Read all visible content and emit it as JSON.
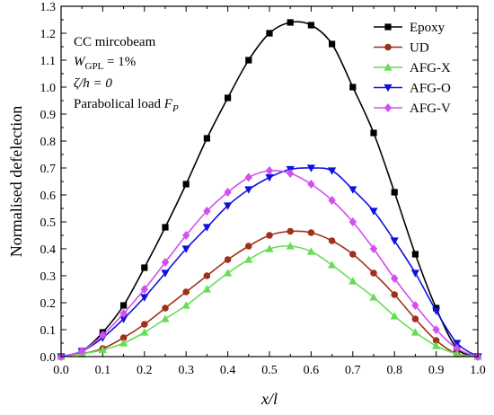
{
  "chart_data": {
    "type": "line",
    "xlabel": "x/l",
    "ylabel": "Normalised defelection",
    "xlim": [
      0.0,
      1.0
    ],
    "ylim": [
      0.0,
      1.3
    ],
    "xticks": [
      "0.0",
      "0.1",
      "0.2",
      "0.3",
      "0.4",
      "0.5",
      "0.6",
      "0.7",
      "0.8",
      "0.9",
      "1.0"
    ],
    "yticks": [
      "0.0",
      "0.1",
      "0.2",
      "0.3",
      "0.4",
      "0.5",
      "0.6",
      "0.7",
      "0.8",
      "0.9",
      "1.0",
      "1.1",
      "1.2",
      "1.3"
    ],
    "legend_position": "top-right",
    "annotations": {
      "line1": "CC mircobeam",
      "line2_main": "W",
      "line2_sub": "GPL",
      "line2_rest": " = 1%",
      "line3": "ζ/h = 0",
      "line4_main": "Parabolical load ",
      "line4_italic": "F",
      "line4_sub": "P"
    },
    "x": [
      0.0,
      0.05,
      0.1,
      0.15,
      0.2,
      0.25,
      0.3,
      0.35,
      0.4,
      0.45,
      0.5,
      0.55,
      0.6,
      0.65,
      0.7,
      0.75,
      0.8,
      0.85,
      0.9,
      0.95,
      1.0
    ],
    "series": [
      {
        "name": "Epoxy",
        "color": "#000000",
        "marker": "square",
        "values": [
          0.0,
          0.02,
          0.09,
          0.19,
          0.33,
          0.48,
          0.64,
          0.81,
          0.96,
          1.1,
          1.2,
          1.24,
          1.23,
          1.16,
          1.0,
          0.83,
          0.61,
          0.38,
          0.18,
          0.03,
          0.0
        ]
      },
      {
        "name": "UD",
        "color": "#a0301a",
        "marker": "circle",
        "values": [
          0.0,
          0.01,
          0.03,
          0.07,
          0.12,
          0.18,
          0.24,
          0.3,
          0.36,
          0.41,
          0.45,
          0.465,
          0.46,
          0.43,
          0.38,
          0.31,
          0.23,
          0.14,
          0.06,
          0.01,
          0.0
        ]
      },
      {
        "name": "AFG-X",
        "color": "#66dd55",
        "marker": "triangle-up",
        "values": [
          0.0,
          0.01,
          0.025,
          0.05,
          0.09,
          0.14,
          0.19,
          0.25,
          0.31,
          0.36,
          0.4,
          0.41,
          0.39,
          0.34,
          0.28,
          0.22,
          0.15,
          0.09,
          0.04,
          0.01,
          0.0
        ]
      },
      {
        "name": "AFG-O",
        "color": "#1010e0",
        "marker": "triangle-down",
        "values": [
          0.0,
          0.02,
          0.07,
          0.14,
          0.22,
          0.31,
          0.4,
          0.48,
          0.56,
          0.62,
          0.665,
          0.695,
          0.7,
          0.69,
          0.62,
          0.54,
          0.43,
          0.31,
          0.17,
          0.05,
          0.0
        ]
      },
      {
        "name": "AFG-V",
        "color": "#d050f0",
        "marker": "diamond",
        "values": [
          0.0,
          0.02,
          0.08,
          0.16,
          0.25,
          0.35,
          0.45,
          0.54,
          0.61,
          0.665,
          0.69,
          0.68,
          0.64,
          0.58,
          0.5,
          0.4,
          0.29,
          0.19,
          0.1,
          0.03,
          0.0
        ]
      }
    ]
  }
}
